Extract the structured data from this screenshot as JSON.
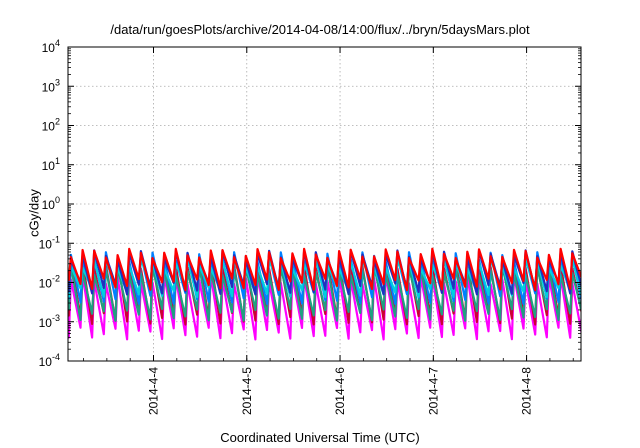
{
  "chart_data": {
    "type": "line",
    "title": "/data/run/goesPlots/archive/2014-04-08/14:00/flux/../bryn/5daysMars.plot",
    "xlabel": "Coordinated Universal Time (UTC)",
    "ylabel": "cGy/day",
    "y_scale": "log",
    "ylim": [
      0.0001,
      10000
    ],
    "y_ticks": [
      {
        "value": 0.0001,
        "base": "10",
        "exp": "-4"
      },
      {
        "value": 0.001,
        "base": "10",
        "exp": "-3"
      },
      {
        "value": 0.01,
        "base": "10",
        "exp": "-2"
      },
      {
        "value": 0.1,
        "base": "10",
        "exp": "-1"
      },
      {
        "value": 1,
        "base": "10",
        "exp": "0"
      },
      {
        "value": 10,
        "base": "10",
        "exp": "1"
      },
      {
        "value": 100,
        "base": "10",
        "exp": "2"
      },
      {
        "value": 1000,
        "base": "10",
        "exp": "3"
      },
      {
        "value": 10000,
        "base": "10",
        "exp": "4"
      }
    ],
    "xlim": [
      "2014-04-03T02:00",
      "2014-04-08T14:00"
    ],
    "x_ticks": [
      {
        "value": "2014-04-04T00:00",
        "label": "2014-4-4"
      },
      {
        "value": "2014-04-05T00:00",
        "label": "2014-4-5"
      },
      {
        "value": "2014-04-06T00:00",
        "label": "2014-4-6"
      },
      {
        "value": "2014-04-07T00:00",
        "label": "2014-4-7"
      },
      {
        "value": "2014-04-08T00:00",
        "label": "2014-4-8"
      }
    ],
    "grid": true,
    "legend": "none",
    "pattern": "sawtooth, one peak roughly every 3 hours",
    "cycle_hours": 3,
    "series": [
      {
        "color": "#ff00ff",
        "peak": 0.012,
        "trough": 0.0005
      },
      {
        "color": "#cc0033",
        "peak": 0.03,
        "trough": 0.0012
      },
      {
        "color": "#20a080",
        "peak": 0.02,
        "trough": 0.0015
      },
      {
        "color": "#0080ff",
        "peak": 0.045,
        "trough": 0.004
      },
      {
        "color": "#00d0e0",
        "peak": 0.03,
        "trough": 0.006
      },
      {
        "color": "#2030c0",
        "peak": 0.05,
        "trough": 0.007
      },
      {
        "color": "#ff0000",
        "peak": 0.055,
        "trough": 0.009
      }
    ]
  }
}
